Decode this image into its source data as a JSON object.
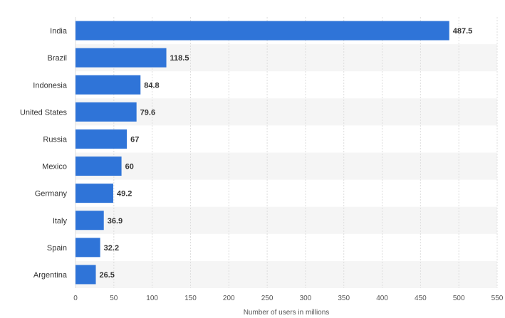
{
  "chart_data": {
    "type": "bar",
    "orientation": "horizontal",
    "categories": [
      "India",
      "Brazil",
      "Indonesia",
      "United States",
      "Russia",
      "Mexico",
      "Germany",
      "Italy",
      "Spain",
      "Argentina"
    ],
    "values": [
      487.5,
      118.5,
      84.8,
      79.6,
      67,
      60,
      49.2,
      36.9,
      32.2,
      26.5
    ],
    "value_labels": [
      "487.5",
      "118.5",
      "84.8",
      "79.6",
      "67",
      "60",
      "49.2",
      "36.9",
      "32.2",
      "26.5"
    ],
    "xlabel": "Number of users in millions",
    "xlim": [
      0,
      550
    ],
    "xticks": [
      0,
      50,
      100,
      150,
      200,
      250,
      300,
      350,
      400,
      450,
      500,
      550
    ],
    "grid": true,
    "bar_color": "#2f74d8",
    "stripe_color": "#f5f5f5",
    "grid_color": "#dddddd"
  }
}
